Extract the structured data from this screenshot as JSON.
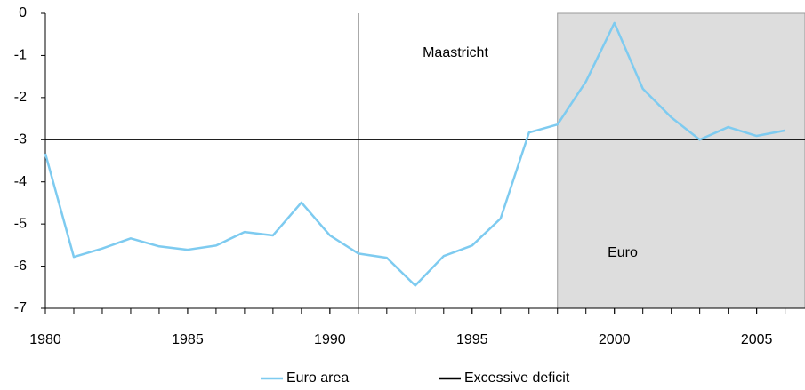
{
  "chart_data": {
    "type": "line",
    "x": [
      1980,
      1981,
      1982,
      1983,
      1984,
      1985,
      1986,
      1987,
      1988,
      1989,
      1990,
      1991,
      1992,
      1993,
      1994,
      1995,
      1996,
      1997,
      1998,
      1999,
      2000,
      2001,
      2002,
      2003,
      2004,
      2005,
      2006
    ],
    "series": [
      {
        "name": "Euro area",
        "color": "#7ecbf0",
        "values": [
          -3.33,
          -5.78,
          -5.58,
          -5.34,
          -5.53,
          -5.61,
          -5.51,
          -5.19,
          -5.27,
          -4.49,
          -5.27,
          -5.7,
          -5.8,
          -6.46,
          -5.76,
          -5.51,
          -4.87,
          -2.83,
          -2.64,
          -1.62,
          -0.23,
          -1.79,
          -2.47,
          -3.0,
          -2.7,
          -2.91,
          -2.78
        ]
      }
    ],
    "hlines": [
      {
        "name": "Excessive deficit",
        "value": -3,
        "color": "#000000"
      }
    ],
    "vlines": [
      {
        "value": 1991,
        "color": "#000000"
      }
    ],
    "shade": {
      "range": [
        1998,
        2006.7
      ],
      "color": "#dddddd"
    },
    "annotations": [
      "Maastricht",
      "Euro"
    ],
    "xlim": [
      1980,
      2006.7
    ],
    "ylim": [
      -7,
      0
    ],
    "xticks": [
      1980,
      1985,
      1990,
      1995,
      2000,
      2005
    ],
    "yticks": [
      0,
      -1,
      -2,
      -3,
      -4,
      -5,
      -6,
      -7
    ]
  }
}
